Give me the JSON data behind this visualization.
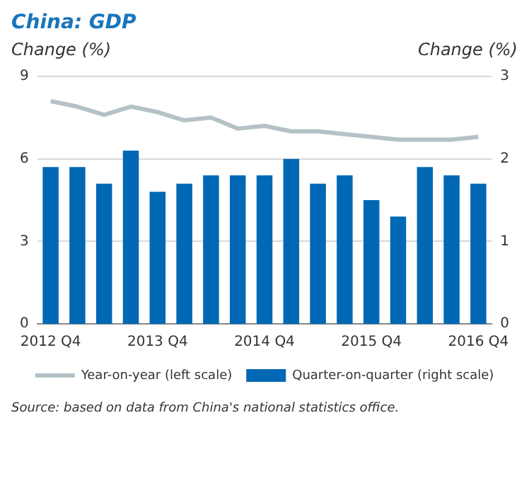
{
  "chart_data": {
    "type": "bar",
    "title": "China: GDP",
    "ylabel": "Change (%)",
    "y2label": "Change (%)",
    "categories": [
      "2012 Q4",
      null,
      null,
      null,
      "2013 Q4",
      null,
      null,
      null,
      "2014 Q4",
      null,
      null,
      null,
      "2015 Q4",
      null,
      null,
      null,
      "2016 Q4"
    ],
    "series": [
      {
        "name": "Year-on-year (left scale)",
        "type": "line",
        "axis": "y",
        "color": "#b4c2c6",
        "marker": "none",
        "values": [
          8.1,
          7.9,
          7.6,
          7.9,
          7.7,
          7.4,
          7.5,
          7.1,
          7.2,
          7.0,
          7.0,
          6.9,
          6.8,
          6.7,
          6.7,
          6.7,
          6.8
        ]
      },
      {
        "name": "Quarter-on-quarter (right scale)",
        "axis": "y2",
        "color": "#0068b4",
        "values": [
          1.9,
          1.9,
          1.7,
          2.1,
          1.6,
          1.7,
          1.8,
          1.8,
          1.8,
          2.0,
          1.7,
          1.8,
          1.5,
          1.3,
          1.9,
          1.8,
          1.7
        ]
      }
    ],
    "ylim": [
      0,
      9
    ],
    "yticks": [
      0,
      3,
      6,
      9
    ],
    "y2lim": [
      0,
      3
    ],
    "y2ticks": [
      0,
      1,
      2,
      3
    ],
    "grid": "y",
    "legend": "bottom",
    "annotations": [
      "Source: based on data from China's national statistics office."
    ]
  }
}
